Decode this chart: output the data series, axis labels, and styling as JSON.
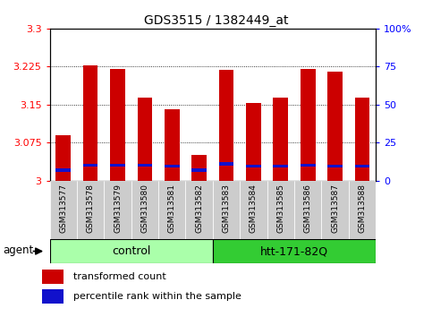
{
  "title": "GDS3515 / 1382449_at",
  "categories": [
    "GSM313577",
    "GSM313578",
    "GSM313579",
    "GSM313580",
    "GSM313581",
    "GSM313582",
    "GSM313583",
    "GSM313584",
    "GSM313585",
    "GSM313586",
    "GSM313587",
    "GSM313588"
  ],
  "transformed_count": [
    3.09,
    3.228,
    3.22,
    3.163,
    3.14,
    3.05,
    3.218,
    3.153,
    3.163,
    3.22,
    3.215,
    3.163
  ],
  "blue_bar_bottom": [
    3.018,
    3.027,
    3.027,
    3.027,
    3.026,
    3.018,
    3.03,
    3.026,
    3.026,
    3.027,
    3.026,
    3.026
  ],
  "blue_bar_height": 0.006,
  "y_min": 3.0,
  "y_max": 3.3,
  "y_ticks": [
    3.0,
    3.075,
    3.15,
    3.225,
    3.3
  ],
  "y_ticks_labels": [
    "3",
    "3.075",
    "3.15",
    "3.225",
    "3.3"
  ],
  "bar_color_red": "#cc0000",
  "bar_color_blue": "#1111cc",
  "bar_width": 0.55,
  "ctrl_color": "#aaffaa",
  "htt_color": "#33cc33",
  "ctrl_label": "control",
  "htt_label": "htt-171-82Q",
  "agent_label": "agent",
  "legend_red_label": "transformed count",
  "legend_blue_label": "percentile rank within the sample",
  "xlabel_color": "#888888",
  "plot_bg_color": "#ffffff",
  "xticklabel_bg": "#cccccc"
}
